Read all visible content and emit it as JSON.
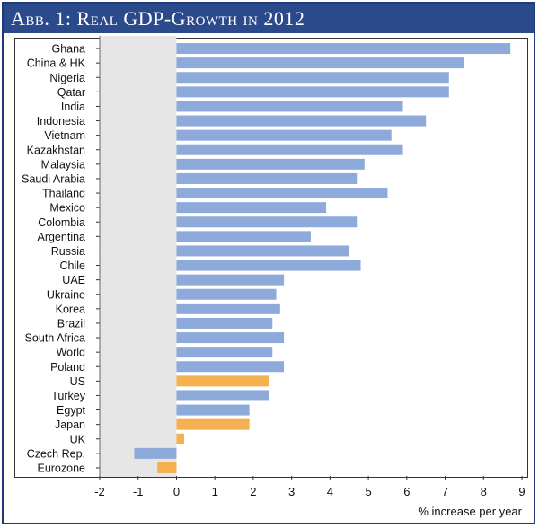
{
  "header": {
    "title": "Abb. 1: Real GDP-Growth in 2012"
  },
  "chart_data": {
    "type": "bar",
    "orientation": "horizontal",
    "title": "Abb. 1: Real GDP-Growth in 2012",
    "xlabel": "% increase per year",
    "ylabel": "",
    "xlim": [
      -2,
      9
    ],
    "xticks": [
      -2,
      -1,
      0,
      1,
      2,
      3,
      4,
      5,
      6,
      7,
      8,
      9
    ],
    "colors": {
      "default": "#8eaadb",
      "highlight": "#f5b050",
      "shade": "#e6e6e6"
    },
    "shaded_region": [
      -2,
      0
    ],
    "categories": [
      "Ghana",
      "China & HK",
      "Nigeria",
      "Qatar",
      "India",
      "Indonesia",
      "Vietnam",
      "Kazakhstan",
      "Malaysia",
      "Saudi Arabia",
      "Thailand",
      "Mexico",
      "Colombia",
      "Argentina",
      "Russia",
      "Chile",
      "UAE",
      "Ukraine",
      "Korea",
      "Brazil",
      "South Africa",
      "World",
      "Poland",
      "US",
      "Turkey",
      "Egypt",
      "Japan",
      "UK",
      "Czech Rep.",
      "Eurozone"
    ],
    "values": [
      8.7,
      7.5,
      7.1,
      7.1,
      5.9,
      6.5,
      5.6,
      5.9,
      4.9,
      4.7,
      5.5,
      3.9,
      4.7,
      3.5,
      4.5,
      4.8,
      2.8,
      2.6,
      2.7,
      2.5,
      2.8,
      2.5,
      2.8,
      2.4,
      2.4,
      1.9,
      1.9,
      0.2,
      -1.1,
      -0.5
    ],
    "highlighted": [
      "US",
      "Japan",
      "UK",
      "Eurozone"
    ]
  }
}
